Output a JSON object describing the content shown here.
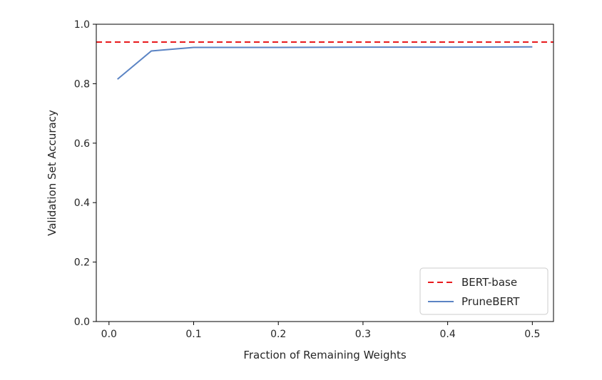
{
  "chart_data": {
    "type": "line",
    "xlabel": "Fraction of Remaining Weights",
    "ylabel": "Validation Set Accuracy",
    "xlim": [
      -0.015,
      0.525
    ],
    "ylim": [
      0.0,
      1.0
    ],
    "xticks": [
      0.0,
      0.1,
      0.2,
      0.3,
      0.4,
      0.5
    ],
    "xtick_labels": [
      "0.0",
      "0.1",
      "0.2",
      "0.3",
      "0.4",
      "0.5"
    ],
    "yticks": [
      0.0,
      0.2,
      0.4,
      0.6,
      0.8,
      1.0
    ],
    "ytick_labels": [
      "0.0",
      "0.2",
      "0.4",
      "0.6",
      "0.8",
      "1.0"
    ],
    "grid": false,
    "legend_position": "bottom-right",
    "series": [
      {
        "name": "BERT-base",
        "style": "dashed",
        "color": "#e8191c",
        "x": [
          -0.015,
          0.525
        ],
        "y": [
          0.94,
          0.94
        ]
      },
      {
        "name": "PruneBERT",
        "style": "solid",
        "color": "#5b84c4",
        "x": [
          0.01,
          0.05,
          0.1,
          0.2,
          0.3,
          0.4,
          0.5
        ],
        "y": [
          0.815,
          0.91,
          0.922,
          0.922,
          0.923,
          0.923,
          0.924
        ]
      }
    ]
  }
}
